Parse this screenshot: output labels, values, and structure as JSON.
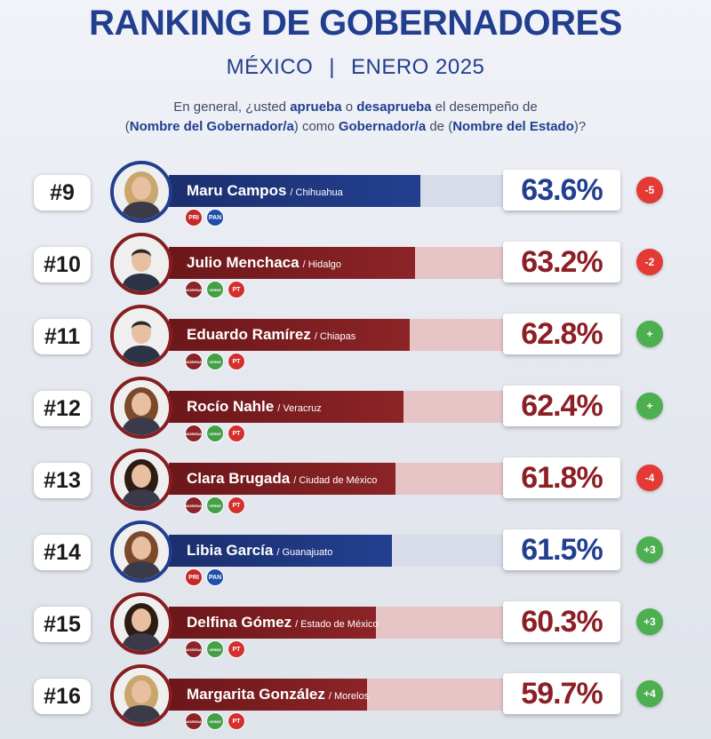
{
  "header": {
    "title": "RANKING DE GOBERNADORES",
    "country": "MÉXICO",
    "separator": "|",
    "period": "ENERO 2025"
  },
  "question": {
    "p1": "En general, ¿usted ",
    "approve": "aprueba",
    "p2": " o ",
    "disapprove": "desaprueba",
    "p3": " el desempeño de",
    "p4": "(",
    "governor_name": "Nombre del Gobernador/a",
    "p5": ") como ",
    "governor_role": "Gobernador/a",
    "p6": " de (",
    "state_name": "Nombre del Estado",
    "p7": ")?"
  },
  "colors": {
    "pan_blue": "#223f8f",
    "morena_maroon": "#8c2427",
    "increase_green": "#4caf50",
    "decrease_red": "#e53935"
  },
  "chart_data": {
    "type": "bar",
    "title": "RANKING DE GOBERNADORES",
    "subtitle": "MÉXICO | ENERO 2025",
    "unit": "%",
    "xlim": [
      45,
      70
    ],
    "rows": [
      {
        "rank": "#9",
        "name": "Maru Campos",
        "state": "/ Chihuahua",
        "value": 63.6,
        "label": "63.6%",
        "change": "-5",
        "change_dir": "down",
        "coalition": "pan",
        "parties": [
          "pri",
          "pan"
        ],
        "avatar": "woman-blonde"
      },
      {
        "rank": "#10",
        "name": "Julio Menchaca",
        "state": "/ Hidalgo",
        "value": 63.2,
        "label": "63.2%",
        "change": "-2",
        "change_dir": "down",
        "coalition": "morena",
        "parties": [
          "morena",
          "pvem",
          "pt"
        ],
        "avatar": "man"
      },
      {
        "rank": "#11",
        "name": "Eduardo Ramírez",
        "state": "/ Chiapas",
        "value": 62.8,
        "label": "62.8%",
        "change": "+",
        "change_dir": "up",
        "coalition": "morena",
        "parties": [
          "morena",
          "pvem",
          "pt"
        ],
        "avatar": "man"
      },
      {
        "rank": "#12",
        "name": "Rocío Nahle",
        "state": "/ Veracruz",
        "value": 62.4,
        "label": "62.4%",
        "change": "+",
        "change_dir": "up",
        "coalition": "morena",
        "parties": [
          "morena",
          "pvem",
          "pt"
        ],
        "avatar": "woman-brown"
      },
      {
        "rank": "#13",
        "name": "Clara Brugada",
        "state": "/ Ciudad de México",
        "value": 61.8,
        "label": "61.8%",
        "change": "-4",
        "change_dir": "down",
        "coalition": "morena",
        "parties": [
          "morena",
          "pvem",
          "pt"
        ],
        "avatar": "woman-dark"
      },
      {
        "rank": "#14",
        "name": "Libia García",
        "state": "/ Guanajuato",
        "value": 61.5,
        "label": "61.5%",
        "change": "+3",
        "change_dir": "up",
        "coalition": "pan",
        "parties": [
          "pri",
          "pan"
        ],
        "avatar": "woman-brown"
      },
      {
        "rank": "#15",
        "name": "Delfina Gómez",
        "state": "/ Estado de México",
        "value": 60.3,
        "label": "60.3%",
        "change": "+3",
        "change_dir": "up",
        "coalition": "morena",
        "parties": [
          "morena",
          "pvem",
          "pt"
        ],
        "avatar": "woman-dark"
      },
      {
        "rank": "#16",
        "name": "Margarita González",
        "state": "/ Morelos",
        "value": 59.7,
        "label": "59.7%",
        "change": "+4",
        "change_dir": "up",
        "coalition": "morena",
        "parties": [
          "morena",
          "pvem",
          "pt"
        ],
        "avatar": "woman-blonde"
      }
    ]
  },
  "party_logos": {
    "pri": {
      "text": "PRI",
      "color": "#c62828"
    },
    "pan": {
      "text": "PAN",
      "color": "#1f4fa8"
    },
    "morena": {
      "text": "MORENA",
      "color": "#8c2427"
    },
    "pvem": {
      "text": "VERDE",
      "color": "#43a047"
    },
    "pt": {
      "text": "PT",
      "color": "#d32f2f"
    }
  }
}
